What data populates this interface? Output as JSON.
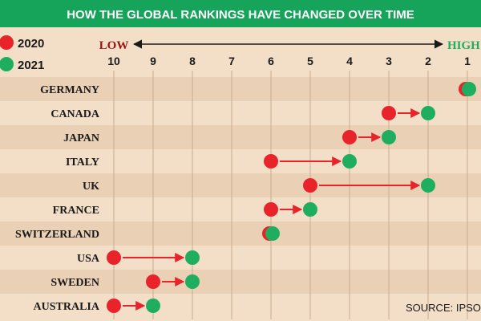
{
  "chart_data": {
    "type": "dot-arrow",
    "title": "HOW THE GLOBAL RANKINGS HAVE CHANGED OVER TIME",
    "legend": [
      {
        "name": "2020",
        "color": "#e8242a"
      },
      {
        "name": "2021",
        "color": "#1fae5f"
      }
    ],
    "axis": {
      "low_label": "LOW",
      "high_label": "HIGH",
      "ticks": [
        10,
        9,
        8,
        7,
        6,
        5,
        4,
        3,
        2,
        1
      ],
      "range": [
        10,
        1
      ]
    },
    "categories": [
      "GERMANY",
      "CANADA",
      "JAPAN",
      "ITALY",
      "UK",
      "FRANCE",
      "SWITZERLAND",
      "USA",
      "SWEDEN",
      "AUSTRALIA"
    ],
    "series": [
      {
        "name": "2020",
        "values": [
          1,
          3,
          4,
          6,
          5,
          6,
          6,
          10,
          9,
          10
        ]
      },
      {
        "name": "2021",
        "values": [
          1,
          2,
          3,
          4,
          2,
          5,
          6,
          8,
          8,
          9
        ]
      }
    ],
    "source": "SOURCE: IPSOS",
    "colors": {
      "banner": "#16a35a",
      "banner_text": "#ffffff",
      "low": "#9a1414",
      "high": "#1fae5f",
      "background": "#f3dec8",
      "stripe": "#ead0b4",
      "grid": "#c9ad8f",
      "text": "#1a1a1a"
    }
  }
}
